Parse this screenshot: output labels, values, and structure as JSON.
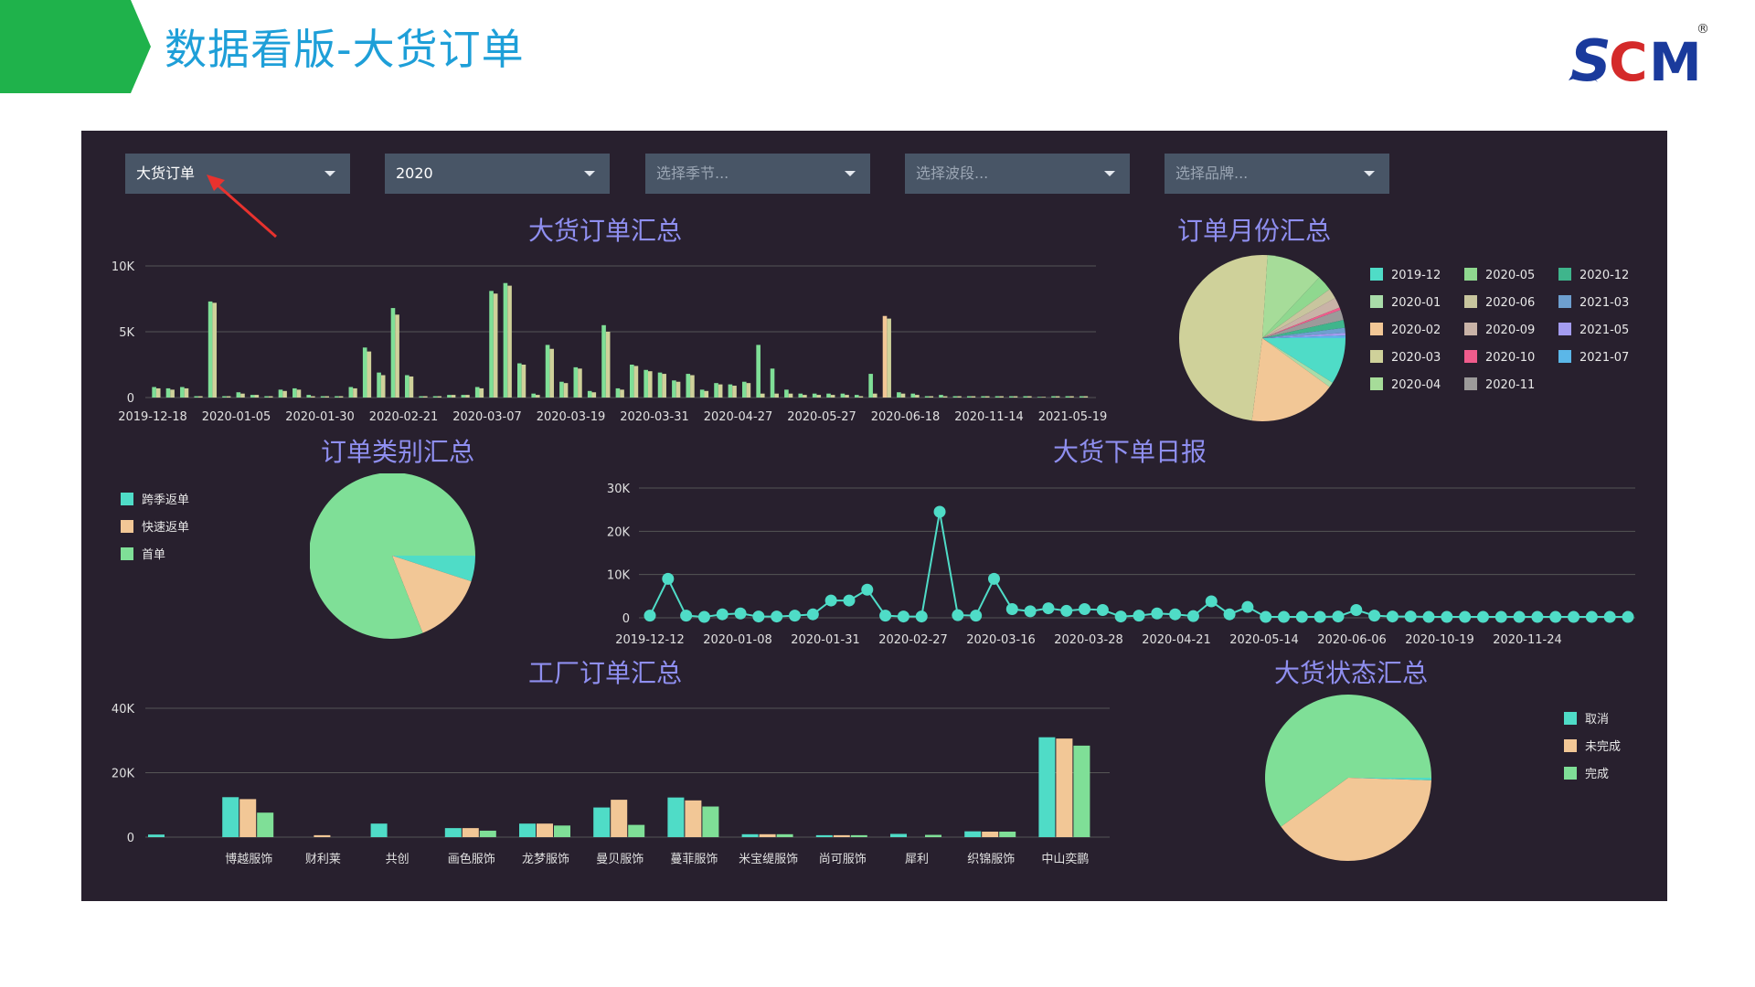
{
  "slide": {
    "title": "数据看版-大货订单"
  },
  "logo": {
    "text": "SCM",
    "registered": "®"
  },
  "filters": [
    {
      "value": "大货订单",
      "placeholder": false
    },
    {
      "value": "2020",
      "placeholder": false
    },
    {
      "value": "选择季节...",
      "placeholder": true
    },
    {
      "value": "选择波段...",
      "placeholder": true
    },
    {
      "value": "选择品牌...",
      "placeholder": true
    }
  ],
  "colors": {
    "teal": "#4fdcc7",
    "peach": "#f2c796",
    "green": "#7fdf97",
    "olive": "#cfd19a",
    "grid": "#555"
  },
  "charts": {
    "bulk_summary": {
      "title": "大货订单汇总"
    },
    "monthly_summary": {
      "title": "订单月份汇总"
    },
    "category_summary": {
      "title": "订单类别汇总"
    },
    "daily_report": {
      "title": "大货下单日报"
    },
    "factory_summary": {
      "title": "工厂订单汇总"
    },
    "status_summary": {
      "title": "大货状态汇总"
    }
  },
  "chart_data": [
    {
      "type": "bar",
      "title": "大货订单汇总",
      "ylim": [
        0,
        10000
      ],
      "yticks": [
        "0",
        "5K",
        "10K"
      ],
      "xtick_labels": [
        "2019-12-18",
        "2020-01-05",
        "2020-01-30",
        "2020-02-21",
        "2020-03-07",
        "2020-03-19",
        "2020-03-31",
        "2020-04-27",
        "2020-05-27",
        "2020-06-18",
        "2020-11-14",
        "2021-05-19"
      ],
      "series": [
        {
          "values": [
            800,
            700,
            800,
            100,
            7300,
            100,
            400,
            200,
            100,
            600,
            700,
            200,
            100,
            100,
            800,
            3800,
            1900,
            6800,
            1700,
            100,
            100,
            200,
            200,
            800,
            8100,
            8700,
            2600,
            300,
            4000,
            1200,
            2300,
            500,
            5500,
            700,
            2500,
            2100,
            1900,
            1300,
            1800,
            600,
            1100,
            1000,
            1200,
            4000,
            2200,
            600,
            300,
            300,
            300,
            300,
            200,
            1800,
            6200,
            400,
            300,
            100,
            200,
            100,
            100,
            100,
            100,
            100,
            100,
            50,
            100,
            100,
            100
          ]
        },
        {
          "values": [
            700,
            600,
            700,
            100,
            7200,
            100,
            300,
            200,
            100,
            500,
            600,
            100,
            100,
            100,
            700,
            3500,
            1700,
            6300,
            1600,
            100,
            100,
            200,
            200,
            700,
            7900,
            8500,
            2500,
            200,
            3700,
            1100,
            2200,
            400,
            5000,
            600,
            2400,
            2000,
            1800,
            1200,
            1700,
            500,
            1000,
            900,
            1100,
            300,
            300,
            300,
            200,
            200,
            200,
            200,
            100,
            300,
            6000,
            300,
            200,
            100,
            100,
            100,
            100,
            100,
            100,
            100,
            100,
            50,
            100,
            100,
            100
          ]
        }
      ]
    },
    {
      "type": "pie",
      "title": "订单月份汇总",
      "legend": [
        "2019-12",
        "2020-01",
        "2020-02",
        "2020-03",
        "2020-04",
        "2020-05",
        "2020-06",
        "2020-09",
        "2020-10",
        "2020-11",
        "2020-12",
        "2021-03",
        "2021-05",
        "2021-07"
      ],
      "values": [
        9,
        1,
        17,
        49,
        11,
        3,
        2,
        2,
        0.5,
        2,
        1.5,
        1,
        0.5,
        0.5
      ],
      "colors": [
        "#4fdcc7",
        "#a9dca9",
        "#f2c796",
        "#cfd19a",
        "#a6dc99",
        "#8fd88f",
        "#c8c59e",
        "#c9b3a7",
        "#f05c8c",
        "#9c9a9a",
        "#3fb58c",
        "#6e9fcf",
        "#a49cf0",
        "#5bb7e8"
      ]
    },
    {
      "type": "pie",
      "title": "订单类别汇总",
      "legend": [
        "跨季返单",
        "快速返单",
        "首单"
      ],
      "values": [
        5,
        14,
        81
      ]
    },
    {
      "type": "line",
      "title": "大货下单日报",
      "ylim": [
        0,
        30000
      ],
      "yticks": [
        "0",
        "10K",
        "20K",
        "30K"
      ],
      "xtick_labels": [
        "2019-12-12",
        "2020-01-08",
        "2020-01-31",
        "2020-02-27",
        "2020-03-16",
        "2020-03-28",
        "2020-04-21",
        "2020-05-14",
        "2020-06-06",
        "2020-10-19",
        "2020-11-24"
      ],
      "values": [
        500,
        9000,
        500,
        200,
        800,
        1000,
        300,
        300,
        500,
        800,
        4000,
        4000,
        6500,
        500,
        300,
        300,
        24500,
        600,
        500,
        9000,
        2000,
        1500,
        2200,
        1600,
        2000,
        1800,
        300,
        500,
        1000,
        800,
        400,
        3800,
        800,
        2500,
        200,
        200,
        200,
        200,
        300,
        1800,
        500,
        300,
        300,
        200,
        200,
        200,
        200,
        200,
        200,
        200,
        200,
        200,
        200,
        200,
        200
      ]
    },
    {
      "type": "bar",
      "title": "工厂订单汇总",
      "ylim": [
        0,
        40000
      ],
      "yticks": [
        "0",
        "20K",
        "40K"
      ],
      "categories": [
        "",
        "博越服饰",
        "财利莱",
        "共创",
        "画色服饰",
        "龙梦服饰",
        "曼贝服饰",
        "蔓菲服饰",
        "米宝缇服饰",
        "尚可服饰",
        "犀利",
        "织锦服饰",
        "中山奕鹏"
      ],
      "series": [
        {
          "values": [
            800,
            12400,
            0,
            4200,
            2800,
            4200,
            9200,
            12300,
            900,
            600,
            1000,
            1800,
            31000
          ]
        },
        {
          "values": [
            0,
            11800,
            600,
            0,
            2800,
            4200,
            11600,
            11400,
            900,
            600,
            0,
            1700,
            30600
          ]
        },
        {
          "values": [
            0,
            7600,
            0,
            0,
            2000,
            3600,
            3800,
            9500,
            900,
            600,
            700,
            1700,
            28400
          ]
        }
      ]
    },
    {
      "type": "pie",
      "title": "大货状态汇总",
      "legend": [
        "取消",
        "未完成",
        "完成"
      ],
      "values": [
        0.5,
        39.5,
        60
      ]
    }
  ]
}
